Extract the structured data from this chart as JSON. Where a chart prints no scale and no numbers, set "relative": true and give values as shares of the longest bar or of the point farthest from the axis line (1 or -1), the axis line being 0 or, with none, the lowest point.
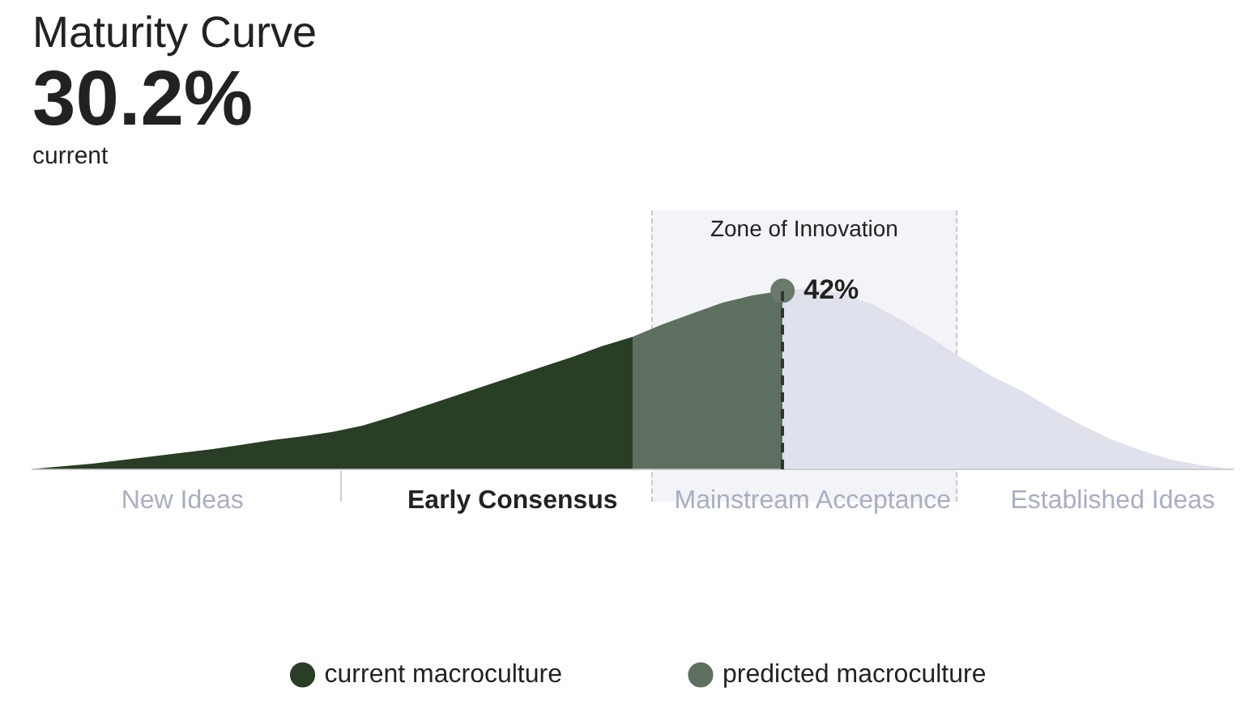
{
  "chart_data": {
    "type": "area",
    "title": "Maturity Curve",
    "subtitle": "30.2%",
    "annotations": [
      "current",
      "Zone of Innovation",
      {
        "text": "42%",
        "y": 0.985
      }
    ],
    "relative": true,
    "categories": [
      null,
      null,
      null,
      null,
      null,
      "New Ideas",
      null,
      null,
      null,
      null,
      null,
      null,
      null,
      null,
      null,
      null,
      "Early Consensus",
      null,
      null,
      null,
      null,
      null,
      null,
      null,
      null,
      null,
      "Mainstream Acceptance",
      null,
      null,
      null,
      null,
      null,
      null,
      null,
      null,
      null,
      "Established Ideas",
      null,
      null,
      null,
      null
    ],
    "legend": "bottom",
    "series": [
      {
        "color": "#dfe2ec",
        "values": [
          null,
          null,
          null,
          null,
          null,
          null,
          null,
          null,
          null,
          null,
          null,
          null,
          null,
          null,
          null,
          null,
          null,
          null,
          null,
          null,
          null,
          null,
          null,
          null,
          null,
          0.985,
          1,
          0.97,
          0.91,
          0.82,
          0.72,
          0.61,
          0.51,
          0.43,
          0.33,
          0.24,
          0.16,
          0.1,
          0.05,
          0.02,
          0
        ]
      },
      {
        "name": "current macroculture",
        "color": "#2a3d26",
        "values": [
          0,
          0.015,
          0.03,
          0.05,
          0.07,
          0.09,
          0.11,
          0.135,
          0.16,
          0.18,
          0.205,
          0.24,
          0.29,
          0.345,
          0.4,
          0.455,
          0.51,
          0.565,
          0.62,
          0.68,
          0.73,
          null,
          null,
          null,
          null,
          null,
          null,
          null,
          null,
          null,
          null,
          null,
          null,
          null,
          null,
          null,
          null,
          null,
          null,
          null,
          null
        ]
      },
      {
        "name": "predicted macroculture",
        "color": "#5e6e5f",
        "values": [
          null,
          null,
          null,
          null,
          null,
          null,
          null,
          null,
          null,
          null,
          null,
          null,
          null,
          null,
          null,
          null,
          null,
          null,
          null,
          null,
          0.73,
          0.8,
          0.86,
          0.92,
          0.96,
          0.985,
          null,
          null,
          null,
          null,
          null,
          null,
          null,
          null,
          null,
          null,
          null,
          null,
          null,
          null,
          null
        ]
      },
      {
        "type": "scatter",
        "color": "#6b7a6b",
        "values": [
          null,
          null,
          null,
          null,
          null,
          null,
          null,
          null,
          null,
          null,
          null,
          null,
          null,
          null,
          null,
          null,
          null,
          null,
          null,
          null,
          null,
          null,
          null,
          null,
          null,
          0.985,
          null,
          null,
          null,
          null,
          null,
          null,
          null,
          null,
          null,
          null,
          null,
          null,
          null,
          null,
          null
        ]
      }
    ]
  }
}
